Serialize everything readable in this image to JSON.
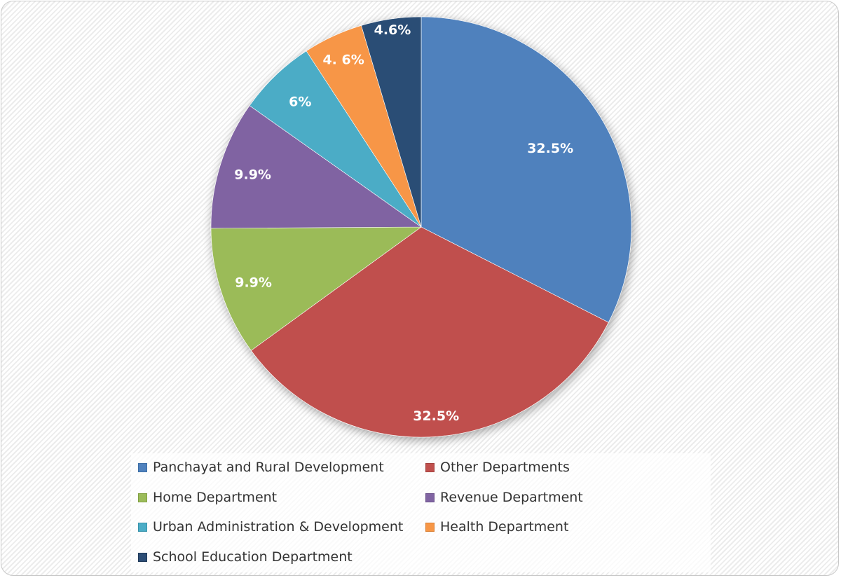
{
  "chart_data": {
    "type": "pie",
    "title": "",
    "start_angle": "12 o'clock",
    "direction": "clockwise",
    "legend_position": "bottom",
    "slices": [
      {
        "name": "Panchayat and Rural Development",
        "value": 32.5,
        "label": "32.5%",
        "color": "#4f81bd"
      },
      {
        "name": "Other Departments",
        "value": 32.5,
        "label": "32.5%",
        "color": "#c0504d"
      },
      {
        "name": "Home Department",
        "value": 9.9,
        "label": "9.9%",
        "color": "#9bbb59"
      },
      {
        "name": "Revenue Department",
        "value": 9.9,
        "label": "9.9%",
        "color": "#8064a2"
      },
      {
        "name": "Urban Administration & Development",
        "value": 6,
        "label": "6%",
        "color": "#4bacc6"
      },
      {
        "name": "Health Department",
        "value": 4.6,
        "label": "4. 6%",
        "color": "#f79646"
      },
      {
        "name": "School Education Department",
        "value": 4.6,
        "label": "4.6%",
        "color": "#2c4d75"
      }
    ]
  }
}
